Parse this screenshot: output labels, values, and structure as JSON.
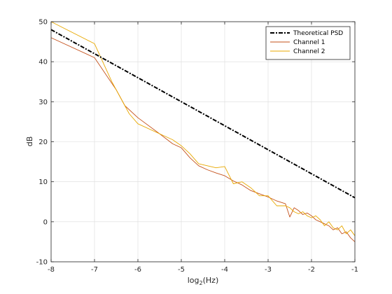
{
  "chart_data": {
    "type": "line",
    "title": "",
    "xlabel_base": "log",
    "xlabel_sub": "2",
    "xlabel_unit": "(Hz)",
    "ylabel": "dB",
    "xlim": [
      -8,
      -1
    ],
    "ylim": [
      -10,
      50
    ],
    "xticks": [
      -8,
      -7,
      -6,
      -5,
      -4,
      -3,
      -2,
      -1
    ],
    "yticks": [
      -10,
      0,
      10,
      20,
      30,
      40,
      50
    ],
    "grid": true,
    "legend_position": "top-right",
    "series": [
      {
        "name": "Theoretical PSD",
        "color": "#000000",
        "style": "dash-dot",
        "x": [
          -8,
          -7,
          -6,
          -5,
          -4,
          -3,
          -2,
          -1
        ],
        "y": [
          48,
          42,
          36,
          30,
          24,
          18,
          12,
          6
        ]
      },
      {
        "name": "Channel 1",
        "color": "#c4501a",
        "style": "solid",
        "x": [
          -8,
          -7,
          -6.5,
          -6.3,
          -6,
          -5.5,
          -5.2,
          -5,
          -4.8,
          -4.6,
          -4.4,
          -4.2,
          -4.0,
          -3.8,
          -3.6,
          -3.4,
          -3.2,
          -3.0,
          -2.8,
          -2.6,
          -2.5,
          -2.4,
          -2.3,
          -2.2,
          -2.1,
          -2.0,
          -1.9,
          -1.8,
          -1.7,
          -1.6,
          -1.5,
          -1.4,
          -1.3,
          -1.2,
          -1.1,
          -1.0
        ],
        "y": [
          46,
          41,
          33,
          29,
          26,
          22,
          19.5,
          18.5,
          16,
          14,
          13,
          12.2,
          11.5,
          10.2,
          9.2,
          7.8,
          7,
          6.2,
          5.2,
          4.5,
          1.2,
          3.5,
          2.8,
          1.8,
          2.2,
          1.5,
          0.5,
          0,
          -0.5,
          -1,
          -2,
          -1.5,
          -3,
          -2.5,
          -4,
          -5
        ]
      },
      {
        "name": "Channel 2",
        "color": "#e8a800",
        "style": "solid",
        "x": [
          -8,
          -7,
          -6.6,
          -6.2,
          -6,
          -5.5,
          -5.2,
          -5,
          -4.8,
          -4.6,
          -4.4,
          -4.2,
          -4.0,
          -3.8,
          -3.6,
          -3.4,
          -3.2,
          -3.0,
          -2.8,
          -2.6,
          -2.5,
          -2.4,
          -2.3,
          -2.2,
          -2.1,
          -2.0,
          -1.9,
          -1.8,
          -1.7,
          -1.6,
          -1.5,
          -1.4,
          -1.3,
          -1.2,
          -1.1,
          -1.0
        ],
        "y": [
          50,
          44.5,
          35,
          27,
          24.5,
          22,
          20.5,
          19,
          17,
          14.5,
          14,
          13.5,
          13.8,
          9.5,
          10,
          8.5,
          6.5,
          6.5,
          4,
          4,
          3.5,
          2.5,
          2,
          2.5,
          1.5,
          1,
          1.5,
          0.5,
          -1,
          0,
          -1.5,
          -2,
          -1,
          -3,
          -2,
          -3.5
        ]
      }
    ]
  }
}
